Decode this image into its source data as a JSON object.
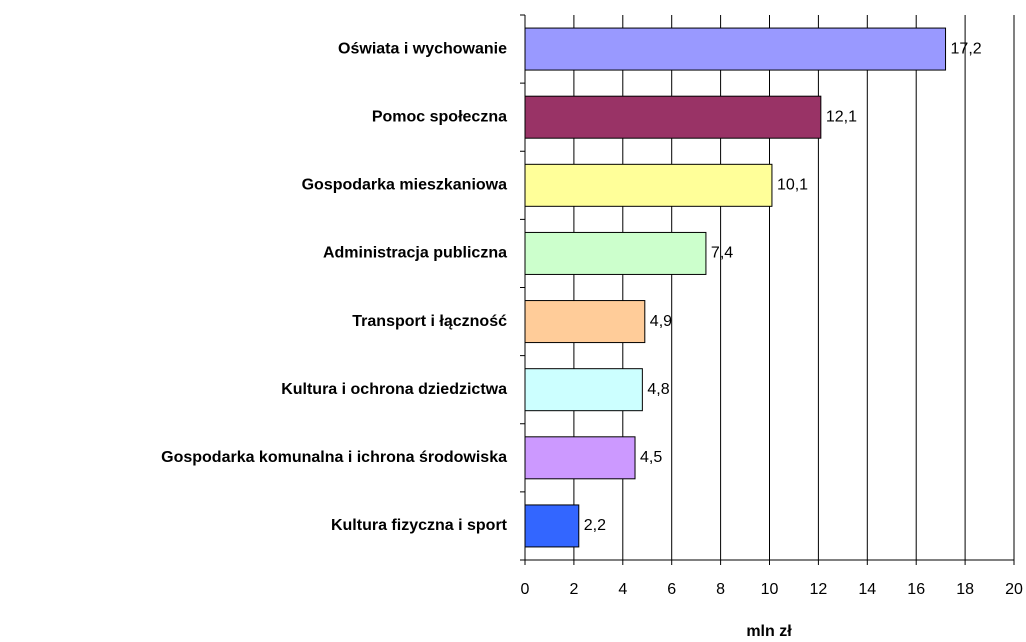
{
  "chart_data": {
    "type": "barh",
    "categories": [
      "Oświata i wychowanie",
      "Pomoc społeczna",
      "Gospodarka mieszkaniowa",
      "Administracja publiczna",
      "Transport i łączność",
      "Kultura i ochrona dziedzictwa",
      "Gospodarka komunalna i ichrona środowiska",
      "Kultura fizyczna i sport"
    ],
    "values": [
      17.2,
      12.1,
      10.1,
      7.4,
      4.9,
      4.8,
      4.5,
      2.2
    ],
    "value_labels": [
      "17,2",
      "12,1",
      "10,1",
      "7,4",
      "4,9",
      "4,8",
      "4,5",
      "2,2"
    ],
    "colors": [
      "#9999ff",
      "#993366",
      "#ffff99",
      "#ccffcc",
      "#ffcc99",
      "#ccffff",
      "#cc99ff",
      "#3366ff"
    ],
    "xlabel": "mln zł",
    "xlim": [
      0,
      20
    ],
    "xticks": [
      0,
      2,
      4,
      6,
      8,
      10,
      12,
      14,
      16,
      18,
      20
    ],
    "grid": true
  }
}
